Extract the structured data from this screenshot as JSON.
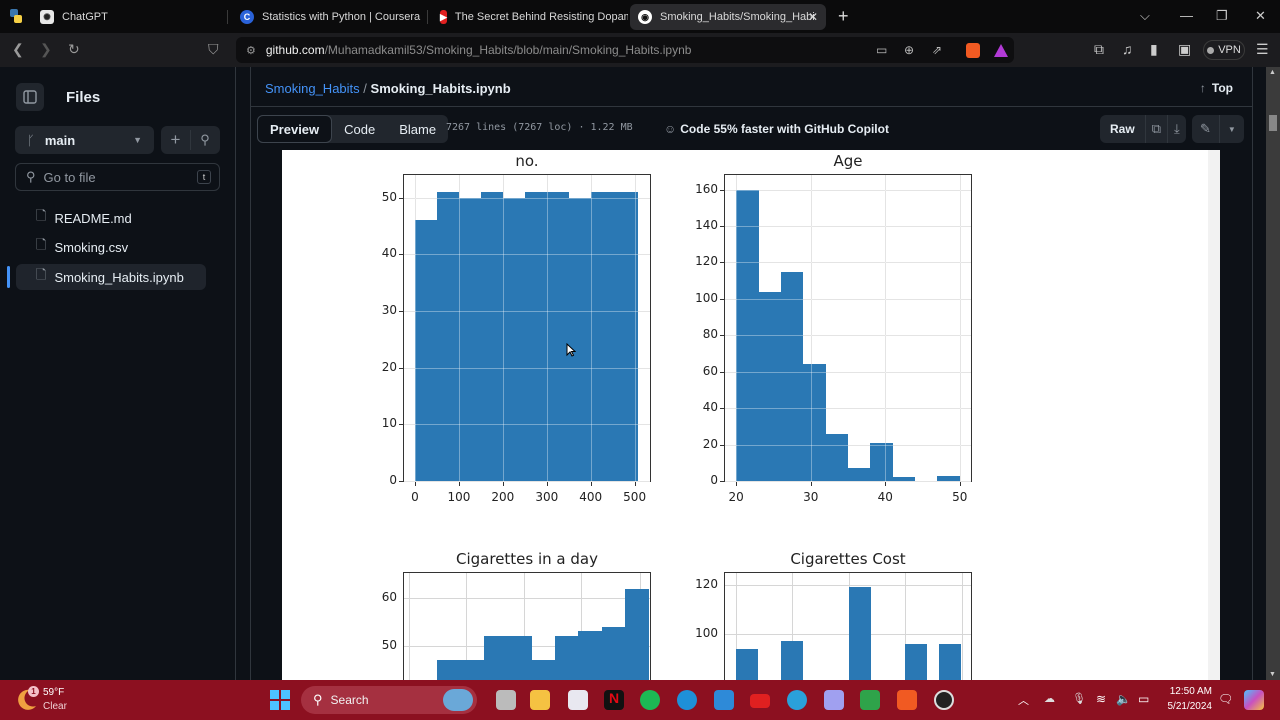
{
  "browser": {
    "tabs": [
      {
        "title": "ChatGPT",
        "icon": "chatgpt-icon"
      },
      {
        "title": "Statistics with Python | Coursera",
        "icon": "coursera-icon"
      },
      {
        "title": "The Secret Behind Resisting Dopami",
        "icon": "youtube-icon"
      },
      {
        "title": "Smoking_Habits/Smoking_Habi",
        "icon": "github-icon",
        "active": true
      }
    ],
    "new_tab": "+",
    "url_domain": "github.com",
    "url_path": "/Muhamadkamil53/Smoking_Habits/blob/main/Smoking_Habits.ipynb",
    "vpn_label": "VPN"
  },
  "sidebar": {
    "title": "Files",
    "branch": "main",
    "search_placeholder": "Go to file",
    "search_shortcut": "t",
    "files": [
      {
        "name": "README.md"
      },
      {
        "name": "Smoking.csv"
      },
      {
        "name": "Smoking_Habits.ipynb",
        "selected": true
      }
    ]
  },
  "header": {
    "repo": "Smoking_Habits",
    "separator": "/",
    "file": "Smoking_Habits.ipynb",
    "top_label": "Top"
  },
  "file_toolbar": {
    "tabs": [
      "Preview",
      "Code",
      "Blame"
    ],
    "meta": "7267 lines (7267 loc) · 1.22 MB",
    "copilot": "Code 55% faster with GitHub Copilot",
    "raw": "Raw"
  },
  "chart_data": [
    {
      "type": "bar",
      "title": "no.",
      "x_ticks": [
        "0",
        "100",
        "200",
        "300",
        "400",
        "500"
      ],
      "y_ticks": [
        "0",
        "10",
        "20",
        "30",
        "40",
        "50"
      ],
      "ylim": [
        0,
        54
      ],
      "xlim": [
        -25,
        535
      ],
      "bins": [
        [
          1,
          51,
          46
        ],
        [
          51,
          101,
          51
        ],
        [
          101,
          151,
          50
        ],
        [
          151,
          201,
          51
        ],
        [
          201,
          251,
          50
        ],
        [
          251,
          301,
          51
        ],
        [
          301,
          351,
          51
        ],
        [
          351,
          401,
          50
        ],
        [
          401,
          451,
          51
        ],
        [
          451,
          508,
          51
        ]
      ]
    },
    {
      "type": "bar",
      "title": "Age",
      "x_ticks": [
        "20",
        "30",
        "40",
        "50"
      ],
      "y_ticks": [
        "0",
        "20",
        "40",
        "60",
        "80",
        "100",
        "120",
        "140",
        "160"
      ],
      "ylim": [
        0,
        168
      ],
      "xlim": [
        18.5,
        51.5
      ],
      "bins": [
        [
          20,
          23,
          160
        ],
        [
          23,
          26,
          104
        ],
        [
          26,
          29,
          115
        ],
        [
          29,
          32,
          64
        ],
        [
          32,
          35,
          26
        ],
        [
          35,
          38,
          7
        ],
        [
          38,
          41,
          21
        ],
        [
          41,
          44,
          2
        ],
        [
          44,
          47,
          0
        ],
        [
          47,
          50,
          3
        ]
      ]
    },
    {
      "type": "bar",
      "title": "Cigarettes in a day",
      "y_ticks_visible": [
        "50",
        "60"
      ],
      "values_visible": [
        47,
        47,
        52,
        52,
        47,
        52,
        53,
        54,
        62
      ]
    },
    {
      "type": "bar",
      "title": "Cigarettes Cost",
      "y_ticks_visible": [
        "100",
        "120"
      ],
      "values_visible": [
        94,
        97,
        119,
        96,
        96
      ]
    }
  ],
  "taskbar": {
    "weather_temp": "59°F",
    "weather_desc": "Clear",
    "weather_badge": "1",
    "search_label": "Search",
    "time": "12:50 AM",
    "date": "5/21/2024"
  },
  "colors": {
    "bar": "#2a78b4",
    "link": "#4493f8",
    "taskbar": "#8c1020"
  }
}
